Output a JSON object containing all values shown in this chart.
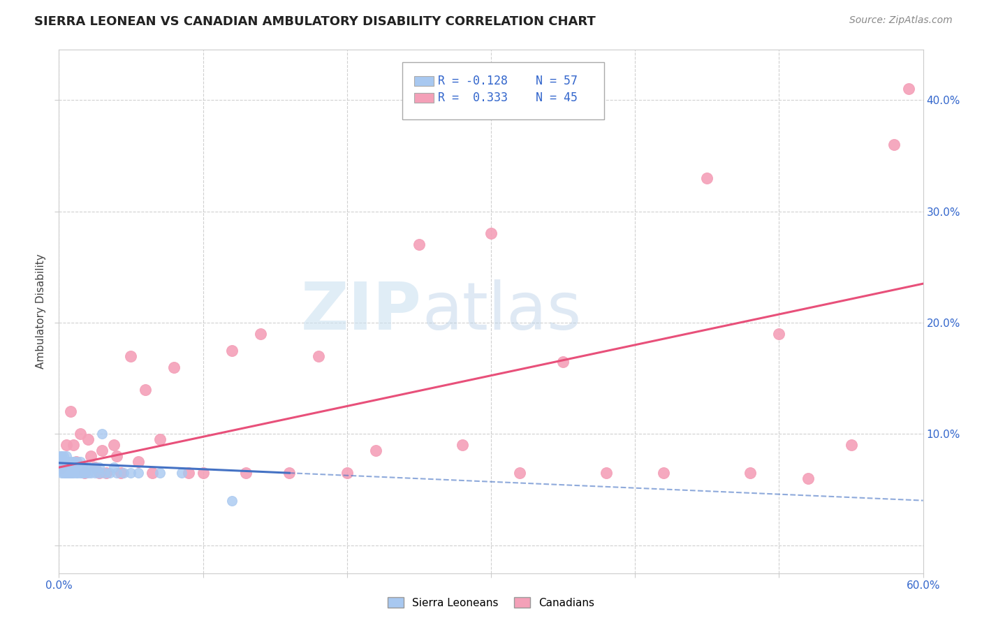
{
  "title": "SIERRA LEONEAN VS CANADIAN AMBULATORY DISABILITY CORRELATION CHART",
  "source": "Source: ZipAtlas.com",
  "ylabel": "Ambulatory Disability",
  "xlim": [
    0.0,
    0.6
  ],
  "ylim": [
    -0.025,
    0.445
  ],
  "yticks": [
    0.0,
    0.1,
    0.2,
    0.3,
    0.4
  ],
  "xticks": [
    0.0,
    0.1,
    0.2,
    0.3,
    0.4,
    0.5,
    0.6
  ],
  "xtick_labels": [
    "0.0%",
    "",
    "",
    "",
    "",
    "",
    "60.0%"
  ],
  "ytick_labels_right": [
    "",
    "10.0%",
    "20.0%",
    "30.0%",
    "40.0%"
  ],
  "sierra_color": "#a8c8f0",
  "canada_color": "#f4a0b8",
  "sierra_line_color": "#4472c4",
  "canada_line_color": "#e8507a",
  "sierra_R": -0.128,
  "sierra_N": 57,
  "canada_R": 0.333,
  "canada_N": 45,
  "legend_label1": "Sierra Leoneans",
  "legend_label2": "Canadians",
  "watermark_zip": "ZIP",
  "watermark_atlas": "atlas",
  "background_color": "#ffffff",
  "grid_color": "#d0d0d0",
  "sierra_x": [
    0.001,
    0.001,
    0.001,
    0.002,
    0.002,
    0.002,
    0.003,
    0.003,
    0.003,
    0.003,
    0.004,
    0.004,
    0.004,
    0.005,
    0.005,
    0.005,
    0.006,
    0.006,
    0.006,
    0.007,
    0.007,
    0.007,
    0.008,
    0.008,
    0.009,
    0.009,
    0.01,
    0.01,
    0.011,
    0.012,
    0.012,
    0.013,
    0.014,
    0.015,
    0.015,
    0.016,
    0.017,
    0.018,
    0.019,
    0.02,
    0.021,
    0.022,
    0.025,
    0.025,
    0.028,
    0.028,
    0.03,
    0.032,
    0.035,
    0.038,
    0.04,
    0.045,
    0.05,
    0.055,
    0.07,
    0.085,
    0.12
  ],
  "sierra_y": [
    0.075,
    0.08,
    0.07,
    0.065,
    0.075,
    0.08,
    0.07,
    0.065,
    0.075,
    0.08,
    0.065,
    0.075,
    0.07,
    0.08,
    0.065,
    0.075,
    0.07,
    0.065,
    0.075,
    0.065,
    0.07,
    0.075,
    0.065,
    0.075,
    0.065,
    0.07,
    0.075,
    0.065,
    0.07,
    0.065,
    0.075,
    0.065,
    0.07,
    0.065,
    0.075,
    0.065,
    0.07,
    0.065,
    0.07,
    0.065,
    0.07,
    0.065,
    0.065,
    0.07,
    0.065,
    0.07,
    0.1,
    0.065,
    0.065,
    0.07,
    0.065,
    0.065,
    0.065,
    0.065,
    0.065,
    0.065,
    0.04
  ],
  "canada_x": [
    0.002,
    0.005,
    0.008,
    0.01,
    0.012,
    0.015,
    0.018,
    0.02,
    0.022,
    0.025,
    0.028,
    0.03,
    0.033,
    0.038,
    0.04,
    0.043,
    0.05,
    0.055,
    0.06,
    0.065,
    0.07,
    0.08,
    0.09,
    0.1,
    0.12,
    0.13,
    0.14,
    0.16,
    0.18,
    0.2,
    0.22,
    0.25,
    0.28,
    0.3,
    0.32,
    0.35,
    0.38,
    0.42,
    0.45,
    0.48,
    0.5,
    0.52,
    0.55,
    0.58,
    0.59
  ],
  "canada_y": [
    0.07,
    0.09,
    0.12,
    0.09,
    0.075,
    0.1,
    0.065,
    0.095,
    0.08,
    0.07,
    0.065,
    0.085,
    0.065,
    0.09,
    0.08,
    0.065,
    0.17,
    0.075,
    0.14,
    0.065,
    0.095,
    0.16,
    0.065,
    0.065,
    0.175,
    0.065,
    0.19,
    0.065,
    0.17,
    0.065,
    0.085,
    0.27,
    0.09,
    0.28,
    0.065,
    0.165,
    0.065,
    0.065,
    0.33,
    0.065,
    0.19,
    0.06,
    0.09,
    0.36,
    0.41
  ],
  "canada_line_x0": 0.0,
  "canada_line_y0": 0.07,
  "canada_line_x1": 0.6,
  "canada_line_y1": 0.235,
  "sierra_line_x0": 0.0,
  "sierra_line_y0": 0.074,
  "sierra_line_x1": 0.16,
  "sierra_line_y1": 0.065
}
